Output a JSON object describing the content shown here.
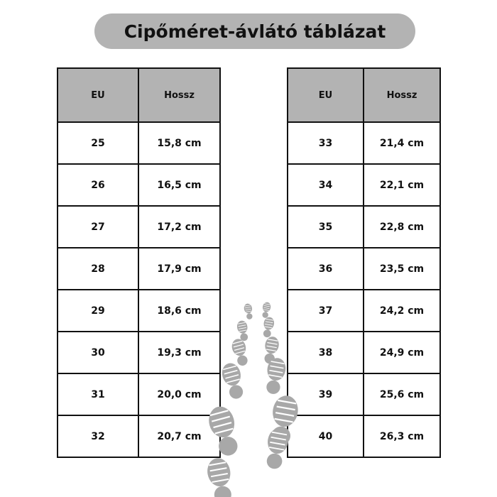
{
  "title": "Cipőméret-ávlátó táblázat",
  "headers": {
    "eu": "EU",
    "length": "Hossz"
  },
  "left_table": [
    {
      "eu": "25",
      "length": "15,8 cm"
    },
    {
      "eu": "26",
      "length": "16,5 cm"
    },
    {
      "eu": "27",
      "length": "17,2 cm"
    },
    {
      "eu": "28",
      "length": "17,9 cm"
    },
    {
      "eu": "29",
      "length": "18,6 cm"
    },
    {
      "eu": "30",
      "length": "19,3 cm"
    },
    {
      "eu": "31",
      "length": "20,0 cm"
    },
    {
      "eu": "32",
      "length": "20,7 cm"
    }
  ],
  "right_table": [
    {
      "eu": "33",
      "length": "21,4 cm"
    },
    {
      "eu": "34",
      "length": "22,1 cm"
    },
    {
      "eu": "35",
      "length": "22,8 cm"
    },
    {
      "eu": "36",
      "length": "23,5 cm"
    },
    {
      "eu": "37",
      "length": "24,2 cm"
    },
    {
      "eu": "38",
      "length": "24,9 cm"
    },
    {
      "eu": "39",
      "length": "25,6 cm"
    },
    {
      "eu": "40",
      "length": "26,3 cm"
    }
  ],
  "colors": {
    "header_bg": "#b3b3b3",
    "footprint": "#a8a8a8"
  },
  "decoration": "footprints-icon"
}
